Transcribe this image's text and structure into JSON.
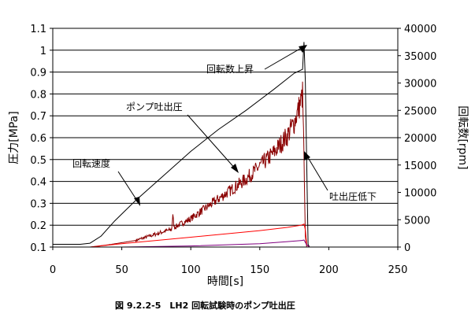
{
  "chart_data": {
    "type": "line",
    "caption": "図 9.2.2-5　LH2 回転試験時のポンプ吐出圧",
    "xlabel": "時間[s]",
    "ylabel_left": "圧力[MPa]",
    "ylabel_right": "回転数[rpm]",
    "xlim": [
      0,
      250
    ],
    "ylim_left": [
      0.1,
      1.1
    ],
    "ylim_right": [
      0,
      40000
    ],
    "x_ticks": [
      "0",
      "50",
      "100",
      "150",
      "200",
      "250"
    ],
    "y_ticks_left": [
      "0.1",
      "0.2",
      "0.3",
      "0.4",
      "0.5",
      "0.6",
      "0.7",
      "0.8",
      "0.9",
      "1",
      "1.1"
    ],
    "y_ticks_right": [
      "0",
      "5000",
      "10000",
      "15000",
      "20000",
      "25000",
      "30000",
      "35000",
      "40000"
    ],
    "grid": "horizontal",
    "annotations": [
      {
        "name": "rotation-rise",
        "text": "回転数上昇"
      },
      {
        "name": "pump-discharge",
        "text": "ポンプ吐出圧"
      },
      {
        "name": "rotation-speed",
        "text": "回転速度"
      },
      {
        "name": "discharge-drop",
        "text": "吐出圧低下"
      }
    ],
    "series": [
      {
        "axis": "right",
        "color": "#000000",
        "x": [
          0,
          10,
          20,
          27,
          35,
          45,
          60,
          80,
          100,
          120,
          140,
          160,
          175,
          181,
          182,
          183,
          184,
          185,
          186,
          190,
          200,
          250
        ],
        "y": [
          500,
          500,
          500,
          700,
          2000,
          4800,
          8500,
          13000,
          17500,
          21500,
          25000,
          28800,
          31800,
          32500,
          37500,
          30500,
          15000,
          500,
          0,
          0,
          0,
          0
        ]
      },
      {
        "axis": "left",
        "color": "#8b0000",
        "x": [
          0,
          27,
          40,
          60,
          80,
          86,
          87,
          88,
          100,
          120,
          140,
          160,
          170,
          175,
          180,
          181,
          182,
          183,
          184,
          186,
          190,
          200,
          250
        ],
        "y": [
          0.1,
          0.1,
          0.11,
          0.13,
          0.17,
          0.18,
          0.24,
          0.19,
          0.23,
          0.32,
          0.41,
          0.53,
          0.61,
          0.67,
          0.77,
          0.8,
          0.52,
          0.15,
          0.1,
          0.1,
          0.1,
          0.1,
          0.1
        ]
      },
      {
        "axis": "left",
        "color": "#ff0000",
        "x": [
          0,
          27,
          50,
          100,
          150,
          170,
          180,
          182,
          183,
          184,
          186,
          250
        ],
        "y": [
          0.1,
          0.1,
          0.115,
          0.145,
          0.175,
          0.19,
          0.2,
          0.205,
          0.18,
          0.11,
          0.1,
          0.1
        ]
      },
      {
        "axis": "left",
        "color": "#800080",
        "x": [
          0,
          50,
          100,
          150,
          170,
          180,
          182,
          184,
          186,
          250
        ],
        "y": [
          0.1,
          0.1,
          0.105,
          0.115,
          0.125,
          0.13,
          0.132,
          0.11,
          0.1,
          0.1
        ]
      }
    ]
  }
}
